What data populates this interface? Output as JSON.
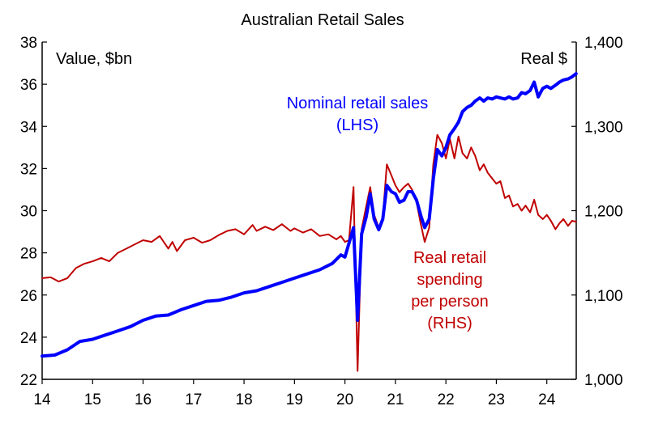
{
  "chart_data": {
    "type": "line",
    "title": "Australian Retail Sales",
    "left_unit_label": "Value, $bn",
    "right_unit_label": "Real $",
    "x_ticks": [
      "14",
      "15",
      "16",
      "17",
      "18",
      "19",
      "20",
      "21",
      "22",
      "23",
      "24"
    ],
    "x_tick_years": [
      2014,
      2015,
      2016,
      2017,
      2018,
      2019,
      2020,
      2021,
      2022,
      2023,
      2024
    ],
    "xlim": [
      2014.0,
      2024.583
    ],
    "left_axis": {
      "ylim": [
        22,
        38
      ],
      "ticks": [
        "22",
        "24",
        "26",
        "28",
        "30",
        "32",
        "34",
        "36",
        "38"
      ],
      "tick_values": [
        22,
        24,
        26,
        28,
        30,
        32,
        34,
        36,
        38
      ]
    },
    "right_axis": {
      "ylim": [
        1000,
        1400
      ],
      "ticks": [
        "1,000",
        "1,100",
        "1,200",
        "1,300",
        "1,400"
      ],
      "tick_values": [
        1000,
        1100,
        1200,
        1300,
        1400
      ]
    },
    "grid": false,
    "series": [
      {
        "name": "Nominal retail sales (LHS)",
        "label_lines": [
          "Nominal retail sales",
          "(LHS)"
        ],
        "axis": "left",
        "color": "#0000ff",
        "points": [
          [
            2014.0,
            23.1
          ],
          [
            2014.25,
            23.15
          ],
          [
            2014.5,
            23.4
          ],
          [
            2014.75,
            23.8
          ],
          [
            2015.0,
            23.9
          ],
          [
            2015.25,
            24.1
          ],
          [
            2015.5,
            24.3
          ],
          [
            2015.75,
            24.5
          ],
          [
            2016.0,
            24.8
          ],
          [
            2016.25,
            25.0
          ],
          [
            2016.5,
            25.05
          ],
          [
            2016.75,
            25.3
          ],
          [
            2017.0,
            25.5
          ],
          [
            2017.25,
            25.7
          ],
          [
            2017.5,
            25.75
          ],
          [
            2017.75,
            25.9
          ],
          [
            2018.0,
            26.1
          ],
          [
            2018.25,
            26.2
          ],
          [
            2018.5,
            26.4
          ],
          [
            2018.75,
            26.6
          ],
          [
            2019.0,
            26.8
          ],
          [
            2019.25,
            27.0
          ],
          [
            2019.5,
            27.2
          ],
          [
            2019.75,
            27.5
          ],
          [
            2019.92,
            27.9
          ],
          [
            2020.0,
            27.8
          ],
          [
            2020.17,
            29.2
          ],
          [
            2020.25,
            24.8
          ],
          [
            2020.33,
            28.9
          ],
          [
            2020.42,
            29.7
          ],
          [
            2020.5,
            30.8
          ],
          [
            2020.58,
            29.6
          ],
          [
            2020.67,
            29.1
          ],
          [
            2020.75,
            29.6
          ],
          [
            2020.83,
            31.2
          ],
          [
            2020.92,
            30.9
          ],
          [
            2021.0,
            30.8
          ],
          [
            2021.08,
            30.4
          ],
          [
            2021.17,
            30.5
          ],
          [
            2021.25,
            30.9
          ],
          [
            2021.33,
            30.9
          ],
          [
            2021.42,
            30.5
          ],
          [
            2021.5,
            29.8
          ],
          [
            2021.58,
            29.2
          ],
          [
            2021.67,
            29.6
          ],
          [
            2021.75,
            31.5
          ],
          [
            2021.83,
            32.9
          ],
          [
            2021.92,
            32.6
          ],
          [
            2022.0,
            33.0
          ],
          [
            2022.08,
            33.6
          ],
          [
            2022.17,
            33.9
          ],
          [
            2022.25,
            34.2
          ],
          [
            2022.33,
            34.7
          ],
          [
            2022.42,
            34.9
          ],
          [
            2022.5,
            35.0
          ],
          [
            2022.58,
            35.2
          ],
          [
            2022.67,
            35.35
          ],
          [
            2022.75,
            35.2
          ],
          [
            2022.83,
            35.35
          ],
          [
            2022.92,
            35.3
          ],
          [
            2023.0,
            35.4
          ],
          [
            2023.08,
            35.35
          ],
          [
            2023.17,
            35.3
          ],
          [
            2023.25,
            35.4
          ],
          [
            2023.33,
            35.3
          ],
          [
            2023.42,
            35.35
          ],
          [
            2023.5,
            35.6
          ],
          [
            2023.58,
            35.55
          ],
          [
            2023.67,
            35.7
          ],
          [
            2023.75,
            36.1
          ],
          [
            2023.83,
            35.4
          ],
          [
            2023.92,
            35.8
          ],
          [
            2024.0,
            35.9
          ],
          [
            2024.08,
            35.8
          ],
          [
            2024.17,
            35.95
          ],
          [
            2024.25,
            36.1
          ],
          [
            2024.33,
            36.2
          ],
          [
            2024.42,
            36.25
          ],
          [
            2024.5,
            36.35
          ],
          [
            2024.58,
            36.5
          ]
        ]
      },
      {
        "name": "Real retail spending per person (RHS)",
        "label_lines": [
          "Real retail",
          "spending",
          "per person",
          "(RHS)"
        ],
        "axis": "right",
        "color": "#c00000",
        "points": [
          [
            2014.0,
            1120
          ],
          [
            2014.17,
            1121
          ],
          [
            2014.33,
            1116
          ],
          [
            2014.5,
            1120
          ],
          [
            2014.67,
            1132
          ],
          [
            2014.83,
            1137
          ],
          [
            2015.0,
            1140
          ],
          [
            2015.17,
            1144
          ],
          [
            2015.33,
            1140
          ],
          [
            2015.5,
            1150
          ],
          [
            2015.67,
            1155
          ],
          [
            2015.83,
            1160
          ],
          [
            2016.0,
            1165
          ],
          [
            2016.17,
            1163
          ],
          [
            2016.33,
            1170
          ],
          [
            2016.5,
            1155
          ],
          [
            2016.58,
            1163
          ],
          [
            2016.67,
            1152
          ],
          [
            2016.83,
            1165
          ],
          [
            2017.0,
            1168
          ],
          [
            2017.17,
            1162
          ],
          [
            2017.33,
            1165
          ],
          [
            2017.5,
            1171
          ],
          [
            2017.67,
            1176
          ],
          [
            2017.83,
            1178
          ],
          [
            2018.0,
            1172
          ],
          [
            2018.17,
            1183
          ],
          [
            2018.25,
            1176
          ],
          [
            2018.42,
            1181
          ],
          [
            2018.58,
            1177
          ],
          [
            2018.75,
            1184
          ],
          [
            2018.92,
            1176
          ],
          [
            2019.0,
            1179
          ],
          [
            2019.17,
            1174
          ],
          [
            2019.33,
            1178
          ],
          [
            2019.5,
            1170
          ],
          [
            2019.67,
            1172
          ],
          [
            2019.83,
            1166
          ],
          [
            2019.92,
            1170
          ],
          [
            2020.0,
            1163
          ],
          [
            2020.08,
            1165
          ],
          [
            2020.17,
            1228
          ],
          [
            2020.25,
            1010
          ],
          [
            2020.33,
            1178
          ],
          [
            2020.42,
            1205
          ],
          [
            2020.5,
            1228
          ],
          [
            2020.58,
            1195
          ],
          [
            2020.67,
            1180
          ],
          [
            2020.75,
            1192
          ],
          [
            2020.83,
            1255
          ],
          [
            2020.92,
            1242
          ],
          [
            2021.0,
            1230
          ],
          [
            2021.08,
            1222
          ],
          [
            2021.17,
            1228
          ],
          [
            2021.25,
            1232
          ],
          [
            2021.33,
            1225
          ],
          [
            2021.42,
            1210
          ],
          [
            2021.5,
            1185
          ],
          [
            2021.58,
            1163
          ],
          [
            2021.67,
            1180
          ],
          [
            2021.75,
            1255
          ],
          [
            2021.83,
            1290
          ],
          [
            2021.92,
            1280
          ],
          [
            2022.0,
            1262
          ],
          [
            2022.08,
            1285
          ],
          [
            2022.17,
            1262
          ],
          [
            2022.25,
            1288
          ],
          [
            2022.33,
            1268
          ],
          [
            2022.42,
            1262
          ],
          [
            2022.5,
            1275
          ],
          [
            2022.58,
            1265
          ],
          [
            2022.67,
            1248
          ],
          [
            2022.75,
            1255
          ],
          [
            2022.83,
            1245
          ],
          [
            2022.92,
            1238
          ],
          [
            2023.0,
            1232
          ],
          [
            2023.08,
            1235
          ],
          [
            2023.17,
            1215
          ],
          [
            2023.25,
            1218
          ],
          [
            2023.33,
            1205
          ],
          [
            2023.42,
            1208
          ],
          [
            2023.5,
            1200
          ],
          [
            2023.58,
            1206
          ],
          [
            2023.67,
            1198
          ],
          [
            2023.75,
            1213
          ],
          [
            2023.83,
            1195
          ],
          [
            2023.92,
            1190
          ],
          [
            2024.0,
            1195
          ],
          [
            2024.08,
            1188
          ],
          [
            2024.17,
            1178
          ],
          [
            2024.25,
            1185
          ],
          [
            2024.33,
            1190
          ],
          [
            2024.42,
            1182
          ],
          [
            2024.5,
            1188
          ],
          [
            2024.58,
            1187
          ]
        ]
      }
    ]
  }
}
